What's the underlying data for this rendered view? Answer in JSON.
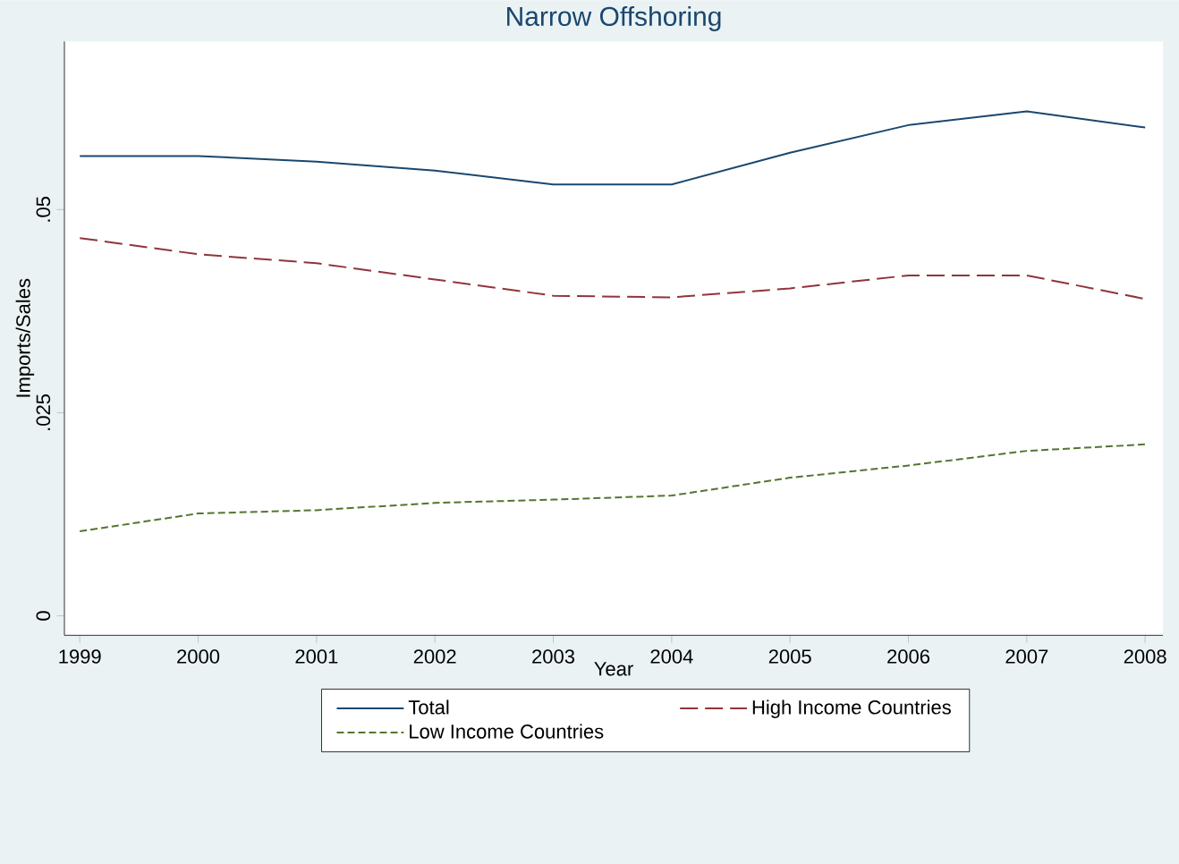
{
  "chart_data": {
    "type": "line",
    "title": "Narrow Offshoring",
    "xlabel": "Year",
    "ylabel": "Imports/Sales",
    "x": [
      1999,
      2000,
      2001,
      2002,
      2003,
      2004,
      2005,
      2006,
      2007,
      2008
    ],
    "series": [
      {
        "name": "Total",
        "color": "#1a476f",
        "line_style": "solid",
        "values": [
          0.0566,
          0.0566,
          0.0559,
          0.0548,
          0.0531,
          0.0531,
          0.057,
          0.0604,
          0.0621,
          0.0601
        ]
      },
      {
        "name": "High Income Countries",
        "color": "#90353b",
        "line_style": "dashed",
        "values": [
          0.0465,
          0.0445,
          0.0434,
          0.0414,
          0.0394,
          0.0392,
          0.0403,
          0.0419,
          0.0419,
          0.039
        ]
      },
      {
        "name": "Low Income Countries",
        "color": "#55752f",
        "line_style": "dotted",
        "values": [
          0.0104,
          0.0126,
          0.013,
          0.0139,
          0.0143,
          0.0148,
          0.017,
          0.0185,
          0.0203,
          0.0211
        ]
      }
    ],
    "xlim": [
      1998.87,
      2008.15
    ],
    "ylim": [
      -0.0024,
      0.0707
    ],
    "xticks": [
      1999,
      2000,
      2001,
      2002,
      2003,
      2004,
      2005,
      2006,
      2007,
      2008
    ],
    "yticks": [
      0,
      {
        "value": 0.025,
        "label": ".025"
      },
      {
        "value": 0.05,
        "label": ".05"
      }
    ],
    "grid": false,
    "legend": "bottom",
    "marker": "none"
  }
}
